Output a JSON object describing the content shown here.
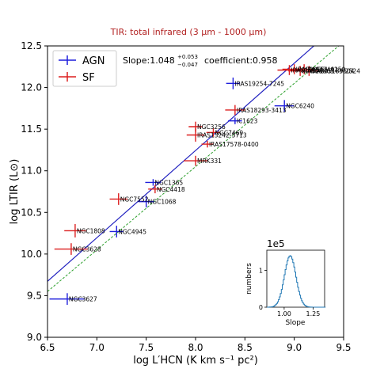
{
  "chart_data": {
    "type": "scatter",
    "title": "TIR: total infrared (3 μm - 1000 μm)",
    "xlabel": "log L′HCN (K km s⁻¹ pc²)",
    "ylabel": "log LTIR (L⊙)",
    "xlim": [
      6.5,
      9.5
    ],
    "ylim": [
      9.0,
      12.5
    ],
    "xticks": [
      "6.5",
      "7.0",
      "7.5",
      "8.0",
      "8.5",
      "9.0",
      "9.5"
    ],
    "yticks": [
      "9.0",
      "9.5",
      "10.0",
      "10.5",
      "11.0",
      "11.5",
      "12.0",
      "12.5"
    ],
    "legend": {
      "placement": "top-left",
      "entries": [
        "AGN",
        "SF"
      ]
    },
    "slope_text": "Slope:1.048",
    "slope_sup": "+0.053",
    "slope_sub": "−0.047",
    "coefficient_text": "coefficient:0.958",
    "fit_line": {
      "slope": 1.048,
      "intercept": 2.86,
      "color": "#1f1fbf"
    },
    "reference_line": {
      "slope": 1.0,
      "intercept": 3.05,
      "color": "#2ca02c"
    },
    "series": [
      {
        "name": "AGN",
        "color": "#1f1fdc",
        "points": [
          {
            "label": "NGC3627",
            "x": 6.7,
            "y": 9.46,
            "xerr": 0.18,
            "yerr": 0.07
          },
          {
            "label": "NGC4945",
            "x": 7.2,
            "y": 10.27,
            "xerr": 0.07,
            "yerr": 0.07
          },
          {
            "label": "NGC1068",
            "x": 7.5,
            "y": 10.63,
            "xerr": 0.08,
            "yerr": 0.07
          },
          {
            "label": "NGC1365",
            "x": 7.57,
            "y": 10.86,
            "xerr": 0.08,
            "yerr": 0.04
          },
          {
            "label": "IC1623",
            "x": 8.4,
            "y": 11.6,
            "xerr": 0.07,
            "yerr": 0.04
          },
          {
            "label": "IRAS19254-7245",
            "x": 8.38,
            "y": 12.05,
            "xerr": 0.07,
            "yerr": 0.07
          },
          {
            "label": "NGC6240",
            "x": 8.9,
            "y": 11.78,
            "xerr": 0.1,
            "yerr": 0.07
          }
        ]
      },
      {
        "name": "SF",
        "color": "#dc1f1f",
        "points": [
          {
            "label": "NGC3628",
            "x": 6.74,
            "y": 10.06,
            "xerr": 0.17,
            "yerr": 0.07
          },
          {
            "label": "NGC1808",
            "x": 6.78,
            "y": 10.28,
            "xerr": 0.11,
            "yerr": 0.08
          },
          {
            "label": "NGC7552",
            "x": 7.22,
            "y": 10.66,
            "xerr": 0.09,
            "yerr": 0.07
          },
          {
            "label": "NGC4418",
            "x": 7.59,
            "y": 10.78,
            "xerr": 0.07,
            "yerr": 0.05
          },
          {
            "label": "MRK331",
            "x": 8.0,
            "y": 11.12,
            "xerr": 0.12,
            "yerr": 0.06
          },
          {
            "label": "IRAS17578-0400",
            "x": 8.12,
            "y": 11.32,
            "xerr": 0.06,
            "yerr": 0.04
          },
          {
            "label": "IRAS13242-5713",
            "x": 8.0,
            "y": 11.43,
            "xerr": 0.09,
            "yerr": 0.08
          },
          {
            "label": "NGC3256",
            "x": 8.0,
            "y": 11.53,
            "xerr": 0.07,
            "yerr": 0.06
          },
          {
            "label": "NGC7469",
            "x": 8.18,
            "y": 11.46,
            "xerr": 0.07,
            "yerr": 0.05
          },
          {
            "label": "IRAS18293-3413",
            "x": 8.4,
            "y": 11.73,
            "xerr": 0.1,
            "yerr": 0.06
          },
          {
            "label": "IRAS15250",
            "x": 8.95,
            "y": 12.21,
            "xerr": 0.12,
            "yerr": 0.06
          },
          {
            "label": "IRAS20551-4250",
            "x": 9.0,
            "y": 12.22,
            "xerr": 0.12,
            "yerr": 0.06
          },
          {
            "label": "IRAS23365+3604",
            "x": 9.06,
            "y": 12.2,
            "xerr": 0.12,
            "yerr": 0.06
          },
          {
            "label": "IRAS22491",
            "x": 9.1,
            "y": 12.22,
            "xerr": 0.1,
            "yerr": 0.06
          },
          {
            "label": "IRAS05189-2524",
            "x": 9.15,
            "y": 12.2,
            "xerr": 0.1,
            "yerr": 0.06
          }
        ]
      }
    ],
    "inset": {
      "type": "histogram",
      "title": "1e5",
      "xlabel": "Slope",
      "ylabel": "numbers",
      "xlim": [
        0.85,
        1.35
      ],
      "ylim": [
        0,
        1.55
      ],
      "xticks": [
        "1.00",
        "1.25"
      ],
      "yticks": [
        "0",
        "1"
      ],
      "color": "#1f77b4",
      "mean": 1.048,
      "sigma": 0.05,
      "peak": 1.4
    }
  }
}
